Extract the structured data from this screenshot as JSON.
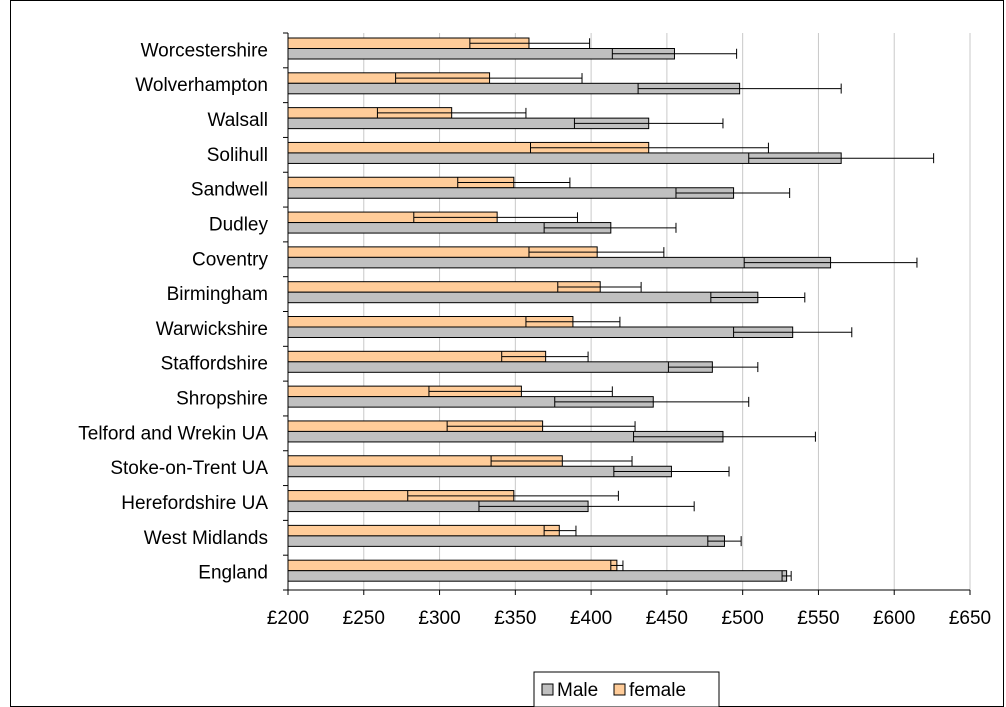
{
  "chart_data": {
    "type": "bar",
    "orientation": "horizontal",
    "title": "",
    "xlabel": "",
    "ylabel": "",
    "xlim": [
      200,
      650
    ],
    "x_ticks": [
      200,
      250,
      300,
      350,
      400,
      450,
      500,
      550,
      600,
      650
    ],
    "x_tick_labels": [
      "£200",
      "£250",
      "£300",
      "£350",
      "£400",
      "£450",
      "£500",
      "£550",
      "£600",
      "£650"
    ],
    "grid": "vertical",
    "legend_position": "bottom",
    "categories": [
      "Worcestershire",
      "Wolverhampton",
      "Walsall",
      "Solihull",
      "Sandwell",
      "Dudley",
      "Coventry",
      "Birmingham",
      "Warwickshire",
      "Staffordshire",
      "Shropshire",
      "Telford and Wrekin UA",
      "Stoke-on-Trent UA",
      "Herefordshire UA",
      "West Midlands",
      "England"
    ],
    "series": [
      {
        "name": "female",
        "color": "#FFCC99",
        "values": [
          359,
          333,
          308,
          438,
          349,
          338,
          404,
          406,
          388,
          370,
          354,
          368,
          381,
          349,
          379,
          417
        ],
        "error_lower": [
          320,
          271,
          259,
          360,
          312,
          283,
          359,
          378,
          357,
          341,
          293,
          305,
          334,
          279,
          369,
          413
        ],
        "error_upper": [
          399,
          394,
          357,
          517,
          386,
          391,
          448,
          433,
          419,
          398,
          414,
          429,
          427,
          418,
          390,
          421
        ]
      },
      {
        "name": "Male",
        "color": "#C0C0C0",
        "values": [
          455,
          498,
          438,
          565,
          494,
          413,
          558,
          510,
          533,
          480,
          441,
          487,
          453,
          398,
          488,
          529
        ],
        "error_lower": [
          414,
          431,
          389,
          504,
          456,
          369,
          501,
          479,
          494,
          451,
          376,
          428,
          415,
          326,
          477,
          526
        ],
        "error_upper": [
          496,
          565,
          487,
          626,
          531,
          456,
          615,
          541,
          572,
          510,
          504,
          548,
          491,
          468,
          499,
          532
        ]
      }
    ],
    "legend": [
      {
        "name": "Male",
        "color": "#C0C0C0"
      },
      {
        "name": "female",
        "color": "#FFCC99"
      }
    ]
  }
}
